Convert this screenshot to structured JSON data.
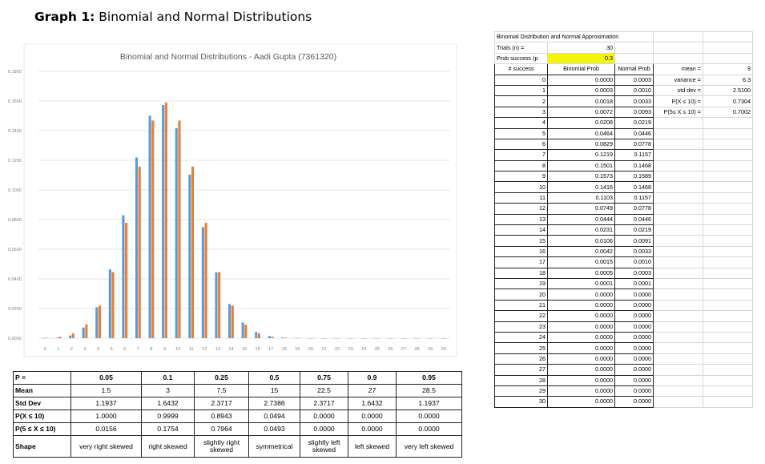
{
  "heading": {
    "bold": "Graph 1:",
    "rest": " Binomial and Normal Distributions"
  },
  "colors": {
    "binomial": "#5b9bd5",
    "normal": "#ed7d31",
    "highlight": "#f5f50a"
  },
  "chart_data": {
    "type": "bar",
    "title": "Binomial and Normal Distributions - Aadi Gupta (7361320)",
    "categories": [
      "0",
      "1",
      "2",
      "3",
      "4",
      "5",
      "6",
      "7",
      "8",
      "9",
      "10",
      "11",
      "12",
      "13",
      "14",
      "15",
      "16",
      "17",
      "18",
      "19",
      "20",
      "21",
      "22",
      "23",
      "24",
      "25",
      "26",
      "27",
      "28",
      "29",
      "30"
    ],
    "series": [
      {
        "values": [
          0.0,
          0.0003,
          0.0018,
          0.0072,
          0.0208,
          0.0464,
          0.0829,
          0.1219,
          0.1501,
          0.1573,
          0.1416,
          0.1103,
          0.0749,
          0.0444,
          0.0231,
          0.0106,
          0.0042,
          0.0015,
          0.0005,
          0.0001,
          0,
          0,
          0,
          0,
          0,
          0,
          0,
          0,
          0,
          0,
          0
        ]
      },
      {
        "values": [
          0.0003,
          0.001,
          0.0033,
          0.0093,
          0.0219,
          0.0446,
          0.0778,
          0.1157,
          0.1468,
          0.1589,
          0.1468,
          0.1157,
          0.0778,
          0.0446,
          0.0219,
          0.0091,
          0.0033,
          0.001,
          0.0003,
          0.0001,
          0,
          0,
          0,
          0,
          0,
          0,
          0,
          0,
          0,
          0,
          0
        ]
      }
    ],
    "ylim": [
      0,
      0.18
    ],
    "yticks": [
      "0.0000",
      "0.0200",
      "0.0400",
      "0.0600",
      "0.0800",
      "0.1000",
      "0.1200",
      "0.1400",
      "0.1600",
      "0.1800"
    ],
    "grid": true
  },
  "stats_table": {
    "header": [
      "P =",
      "0.05",
      "0.1",
      "0.25",
      "0.5",
      "0.75",
      "0.9",
      "0.95"
    ],
    "rows": [
      [
        "Mean",
        "1.5",
        "3",
        "7.5",
        "15",
        "22.5",
        "27",
        "28.5"
      ],
      [
        "Std Dev",
        "1.1937",
        "1.6432",
        "2.3717",
        "2.7386",
        "2.3717",
        "1.6432",
        "1.1937"
      ],
      [
        "P(X ≤ 10)",
        "1.0000",
        "0.9999",
        "0.8943",
        "0.0494",
        "0.0000",
        "0.0000",
        "0.0000"
      ],
      [
        "P(5 ≤ X ≤ 10)",
        "0.0156",
        "0.1754",
        "0.7964",
        "0.0493",
        "0.0000",
        "0.0000",
        "0.0000"
      ],
      [
        "Shape",
        "very right skewed",
        "right skewed",
        "slightly right skewed",
        "symmetrical",
        "slightly left skewed",
        "left skewed",
        "very left skewed"
      ]
    ]
  },
  "sheet": {
    "title": "Binomial Distribution and Normal Approximation",
    "trials_label": "Trials (n) =",
    "trials_value": "30",
    "prob_label": "Prob success (p",
    "prob_value": "0.3",
    "col_headers": [
      "# success",
      "Binomial Prob",
      "Normal Prob"
    ],
    "rows": [
      [
        "0",
        "0.0000",
        "0.0003"
      ],
      [
        "1",
        "0.0003",
        "0.0010"
      ],
      [
        "2",
        "0.0018",
        "0.0033"
      ],
      [
        "3",
        "0.0072",
        "0.0093"
      ],
      [
        "4",
        "0.0208",
        "0.0219"
      ],
      [
        "5",
        "0.0464",
        "0.0446"
      ],
      [
        "6",
        "0.0829",
        "0.0778"
      ],
      [
        "7",
        "0.1219",
        "0.1157"
      ],
      [
        "8",
        "0.1501",
        "0.1468"
      ],
      [
        "9",
        "0.1573",
        "0.1589"
      ],
      [
        "10",
        "0.1416",
        "0.1468"
      ],
      [
        "11",
        "0.1103",
        "0.1157"
      ],
      [
        "12",
        "0.0749",
        "0.0778"
      ],
      [
        "13",
        "0.0444",
        "0.0446"
      ],
      [
        "14",
        "0.0231",
        "0.0219"
      ],
      [
        "15",
        "0.0106",
        "0.0091"
      ],
      [
        "16",
        "0.0042",
        "0.0033"
      ],
      [
        "17",
        "0.0015",
        "0.0010"
      ],
      [
        "18",
        "0.0005",
        "0.0003"
      ],
      [
        "19",
        "0.0001",
        "0.0001"
      ],
      [
        "20",
        "0.0000",
        "0.0000"
      ],
      [
        "21",
        "0.0000",
        "0.0000"
      ],
      [
        "22",
        "0.0000",
        "0.0000"
      ],
      [
        "23",
        "0.0000",
        "0.0000"
      ],
      [
        "24",
        "0.0000",
        "0.0000"
      ],
      [
        "25",
        "0.0000",
        "0.0000"
      ],
      [
        "26",
        "0.0000",
        "0.0000"
      ],
      [
        "27",
        "0.0000",
        "0.0000"
      ],
      [
        "28",
        "0.0000",
        "0.0000"
      ],
      [
        "29",
        "0.0000",
        "0.0000"
      ],
      [
        "30",
        "0.0000",
        "0.0000"
      ]
    ],
    "summary": [
      [
        "mean =",
        "9"
      ],
      [
        "variance =",
        "6.3"
      ],
      [
        "std dev =",
        "2.5100"
      ],
      [
        "P(X ≤ 10) =",
        "0.7304"
      ],
      [
        "P(5≤ X ≤ 10) =",
        "0.7002"
      ]
    ]
  }
}
